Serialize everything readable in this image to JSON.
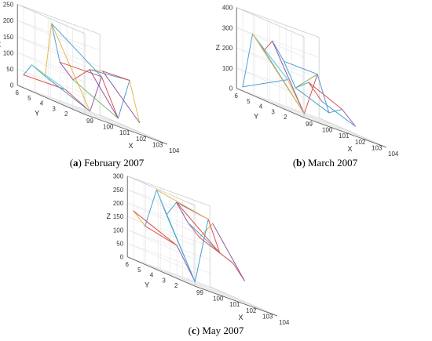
{
  "figure": {
    "line_colors": [
      "#4f9fd0",
      "#d9534f",
      "#e8b84b",
      "#8e5aa8",
      "#7fb86a",
      "#5ec9d6"
    ]
  },
  "chart_data": [
    {
      "type": "line",
      "plot_style": "3d-wireframe",
      "caption_label": "a",
      "caption_text": "February 2007",
      "xlabel": "X",
      "ylabel": "Y",
      "zlabel": "Z",
      "x_ticks": [
        "99",
        "100",
        "101",
        "102",
        "103",
        "104"
      ],
      "y_ticks": [
        "2",
        "3",
        "4",
        "5",
        "6"
      ],
      "z_ticks": [
        "0",
        "50",
        "100",
        "150",
        "200",
        "250"
      ],
      "xlim": [
        99,
        104
      ],
      "ylim": [
        1,
        6.5
      ],
      "zlim": [
        0,
        250
      ],
      "grid": true,
      "points": [
        {
          "x": 99.0,
          "y": 6.0,
          "z": 40
        },
        {
          "x": 99.5,
          "y": 6.0,
          "z": 80
        },
        {
          "x": 100.3,
          "y": 6.0,
          "z": 60
        },
        {
          "x": 100.7,
          "y": 6.0,
          "z": 230
        },
        {
          "x": 101.2,
          "y": 6.0,
          "z": 120
        },
        {
          "x": 102.0,
          "y": 6.0,
          "z": 80
        },
        {
          "x": 103.0,
          "y": 6.0,
          "z": 130
        },
        {
          "x": 103.8,
          "y": 6.0,
          "z": 140
        },
        {
          "x": 99.3,
          "y": 3.0,
          "z": 50
        },
        {
          "x": 100.8,
          "y": 3.0,
          "z": 10
        },
        {
          "x": 101.5,
          "y": 3.0,
          "z": 130
        },
        {
          "x": 102.5,
          "y": 3.0,
          "z": 20
        },
        {
          "x": 103.2,
          "y": 3.0,
          "z": 150
        },
        {
          "x": 103.8,
          "y": 3.0,
          "z": 30
        }
      ],
      "edges": [
        [
          0,
          1,
          0
        ],
        [
          1,
          2,
          4
        ],
        [
          2,
          3,
          2
        ],
        [
          3,
          4,
          0
        ],
        [
          4,
          5,
          3
        ],
        [
          5,
          6,
          1
        ],
        [
          6,
          7,
          2
        ],
        [
          0,
          8,
          1
        ],
        [
          8,
          9,
          1
        ],
        [
          9,
          10,
          3
        ],
        [
          10,
          11,
          1
        ],
        [
          11,
          12,
          0
        ],
        [
          12,
          13,
          2
        ],
        [
          1,
          8,
          5
        ],
        [
          2,
          9,
          0
        ],
        [
          3,
          9,
          2
        ],
        [
          4,
          10,
          1
        ],
        [
          5,
          11,
          4
        ],
        [
          6,
          12,
          0
        ],
        [
          7,
          13,
          3
        ],
        [
          3,
          10,
          0
        ],
        [
          6,
          11,
          3
        ],
        [
          12,
          7,
          1
        ]
      ]
    },
    {
      "type": "line",
      "plot_style": "3d-wireframe",
      "caption_label": "b",
      "caption_text": "March 2007",
      "xlabel": "X",
      "ylabel": "Y",
      "zlabel": "Z",
      "x_ticks": [
        "99",
        "100",
        "101",
        "102",
        "103",
        "104"
      ],
      "y_ticks": [
        "2",
        "3",
        "4",
        "5",
        "6"
      ],
      "z_ticks": [
        "0",
        "100",
        "200",
        "300",
        "400"
      ],
      "xlim": [
        99,
        104
      ],
      "ylim": [
        1,
        6.5
      ],
      "zlim": [
        0,
        400
      ],
      "grid": true,
      "points": [
        {
          "x": 99.0,
          "y": 6.0,
          "z": 20
        },
        {
          "x": 99.6,
          "y": 6.0,
          "z": 300
        },
        {
          "x": 100.3,
          "y": 6.0,
          "z": 240
        },
        {
          "x": 100.8,
          "y": 6.0,
          "z": 300
        },
        {
          "x": 101.5,
          "y": 6.0,
          "z": 220
        },
        {
          "x": 102.2,
          "y": 6.0,
          "z": 110
        },
        {
          "x": 103.0,
          "y": 6.0,
          "z": 160
        },
        {
          "x": 103.8,
          "y": 6.0,
          "z": 90
        },
        {
          "x": 99.5,
          "y": 3.0,
          "z": 150
        },
        {
          "x": 100.5,
          "y": 3.0,
          "z": 10
        },
        {
          "x": 101.3,
          "y": 3.0,
          "z": 230
        },
        {
          "x": 102.0,
          "y": 3.0,
          "z": 60
        },
        {
          "x": 102.8,
          "y": 3.0,
          "z": 100
        },
        {
          "x": 103.6,
          "y": 3.0,
          "z": 40
        }
      ],
      "edges": [
        [
          0,
          1,
          0
        ],
        [
          1,
          2,
          3
        ],
        [
          2,
          3,
          1
        ],
        [
          3,
          4,
          0
        ],
        [
          4,
          5,
          0
        ],
        [
          5,
          6,
          0
        ],
        [
          6,
          7,
          1
        ],
        [
          0,
          8,
          0
        ],
        [
          8,
          9,
          2
        ],
        [
          9,
          10,
          1
        ],
        [
          10,
          11,
          0
        ],
        [
          11,
          12,
          0
        ],
        [
          12,
          13,
          3
        ],
        [
          1,
          8,
          5
        ],
        [
          2,
          9,
          0
        ],
        [
          3,
          9,
          3
        ],
        [
          4,
          10,
          0
        ],
        [
          5,
          11,
          0
        ],
        [
          6,
          12,
          1
        ],
        [
          7,
          13,
          0
        ],
        [
          1,
          9,
          2
        ],
        [
          10,
          5,
          4
        ]
      ]
    },
    {
      "type": "line",
      "plot_style": "3d-wireframe",
      "caption_label": "c",
      "caption_text": "May 2007",
      "xlabel": "X",
      "ylabel": "Y",
      "zlabel": "Z",
      "x_ticks": [
        "99",
        "100",
        "101",
        "102",
        "103",
        "104"
      ],
      "y_ticks": [
        "2",
        "3",
        "4",
        "5",
        "6"
      ],
      "z_ticks": [
        "0",
        "50",
        "100",
        "150",
        "200",
        "250",
        "300"
      ],
      "xlim": [
        99,
        104
      ],
      "ylim": [
        1,
        6.5
      ],
      "zlim": [
        0,
        300
      ],
      "grid": true,
      "points": [
        {
          "x": 99.0,
          "y": 6.0,
          "z": 180
        },
        {
          "x": 99.7,
          "y": 6.0,
          "z": 140
        },
        {
          "x": 100.4,
          "y": 6.0,
          "z": 290
        },
        {
          "x": 101.0,
          "y": 6.0,
          "z": 210
        },
        {
          "x": 101.6,
          "y": 6.0,
          "z": 270
        },
        {
          "x": 102.3,
          "y": 6.0,
          "z": 210
        },
        {
          "x": 103.0,
          "y": 6.0,
          "z": 170
        },
        {
          "x": 103.8,
          "y": 6.0,
          "z": 240
        },
        {
          "x": 99.4,
          "y": 3.0,
          "z": 120
        },
        {
          "x": 100.5,
          "y": 3.0,
          "z": 10
        },
        {
          "x": 101.3,
          "y": 3.0,
          "z": 260
        },
        {
          "x": 102.0,
          "y": 3.0,
          "z": 150
        },
        {
          "x": 102.8,
          "y": 3.0,
          "z": 130
        },
        {
          "x": 103.5,
          "y": 3.0,
          "z": 80
        }
      ],
      "edges": [
        [
          0,
          1,
          2
        ],
        [
          1,
          2,
          0
        ],
        [
          2,
          3,
          3
        ],
        [
          3,
          4,
          0
        ],
        [
          4,
          5,
          3
        ],
        [
          5,
          6,
          1
        ],
        [
          6,
          7,
          2
        ],
        [
          0,
          8,
          1
        ],
        [
          8,
          9,
          3
        ],
        [
          9,
          10,
          0
        ],
        [
          10,
          11,
          1
        ],
        [
          11,
          12,
          5
        ],
        [
          12,
          13,
          1
        ],
        [
          1,
          8,
          1
        ],
        [
          2,
          9,
          5
        ],
        [
          3,
          9,
          0
        ],
        [
          4,
          10,
          3
        ],
        [
          5,
          11,
          0
        ],
        [
          6,
          12,
          1
        ],
        [
          7,
          13,
          3
        ],
        [
          2,
          10,
          2
        ],
        [
          4,
          11,
          1
        ]
      ]
    }
  ]
}
